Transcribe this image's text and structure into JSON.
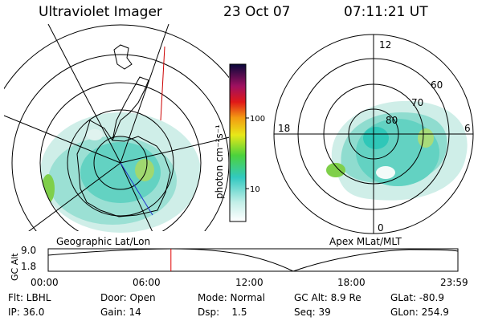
{
  "header": {
    "title": "Ultraviolet Imager",
    "date": "23 Oct 07",
    "time": "07:11:21 UT"
  },
  "panels": {
    "left_caption": "Geographic Lat/Lon",
    "right_caption": "Apex MLat/MLT"
  },
  "mlt_labels": [
    "12",
    "18",
    "6",
    "0"
  ],
  "mlat_labels": [
    "60",
    "70",
    "80"
  ],
  "colorbar": {
    "label": "photon cm⁻²s⁻¹",
    "ticks": [
      "100",
      "10"
    ]
  },
  "gc_alt_plot": {
    "ylabel": "GC Alt",
    "y_ticks": [
      "9.0",
      "1.8"
    ],
    "x_ticks": [
      "00:00",
      "06:00",
      "12:00",
      "18:00",
      "23:59"
    ],
    "current_time_hours": 7.19,
    "marker_color": "#e00000"
  },
  "info": {
    "row1": [
      "Flt: LBHL",
      "Door: Open",
      "Mode: Normal",
      "GC Alt: 8.9 Re",
      "GLat: -80.9"
    ],
    "row2": [
      "IP: 36.0",
      "Gain: 14",
      "Dsp:    1.5",
      "Seq: 39",
      "GLon: 254.9"
    ]
  }
}
